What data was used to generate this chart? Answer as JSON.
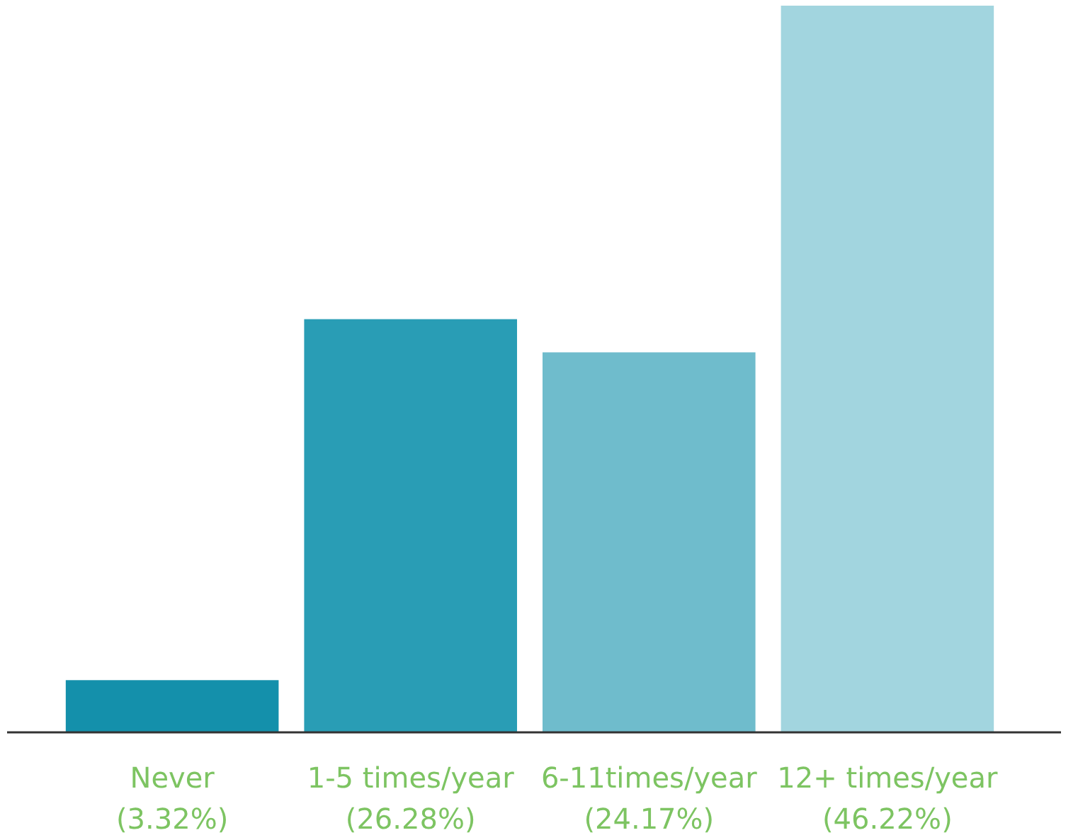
{
  "chart_data": {
    "type": "bar",
    "categories": [
      "Never",
      "1-5 times/year",
      "6-11times/year",
      "12+ times/year"
    ],
    "values": [
      3.32,
      26.28,
      24.17,
      46.22
    ],
    "value_labels": [
      "(3.32%)",
      "(26.28%)",
      "(24.17%)",
      "(46.22%)"
    ],
    "colors": [
      "#1490ab",
      "#299db5",
      "#6fbccc",
      "#a2d5df"
    ]
  }
}
